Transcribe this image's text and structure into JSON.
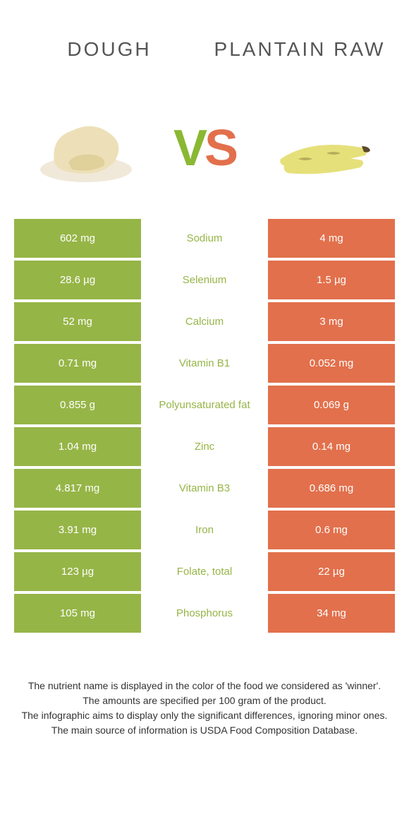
{
  "header": {
    "left_title": "Dough",
    "right_title": "Plantain raw"
  },
  "vs": {
    "v": "V",
    "s": "S"
  },
  "colors": {
    "left_bg": "#96b547",
    "right_bg": "#e2704c",
    "left_text": "#96b547",
    "right_text": "#e2704c"
  },
  "rows": [
    {
      "left": "602 mg",
      "label": "Sodium",
      "right": "4 mg",
      "winner": "left"
    },
    {
      "left": "28.6 µg",
      "label": "Selenium",
      "right": "1.5 µg",
      "winner": "left"
    },
    {
      "left": "52 mg",
      "label": "Calcium",
      "right": "3 mg",
      "winner": "left"
    },
    {
      "left": "0.71 mg",
      "label": "Vitamin B1",
      "right": "0.052 mg",
      "winner": "left"
    },
    {
      "left": "0.855 g",
      "label": "Polyunsaturated fat",
      "right": "0.069 g",
      "winner": "left"
    },
    {
      "left": "1.04 mg",
      "label": "Zinc",
      "right": "0.14 mg",
      "winner": "left"
    },
    {
      "left": "4.817 mg",
      "label": "Vitamin B3",
      "right": "0.686 mg",
      "winner": "left"
    },
    {
      "left": "3.91 mg",
      "label": "Iron",
      "right": "0.6 mg",
      "winner": "left"
    },
    {
      "left": "123 µg",
      "label": "Folate, total",
      "right": "22 µg",
      "winner": "left"
    },
    {
      "left": "105 mg",
      "label": "Phosphorus",
      "right": "34 mg",
      "winner": "left"
    }
  ],
  "footer": {
    "line1": "The nutrient name is displayed in the color of the food we considered as 'winner'.",
    "line2": "The amounts are specified per 100 gram of the product.",
    "line3": "The infographic aims to display only the significant differences, ignoring minor ones.",
    "line4": "The main source of information is USDA Food Composition Database."
  }
}
